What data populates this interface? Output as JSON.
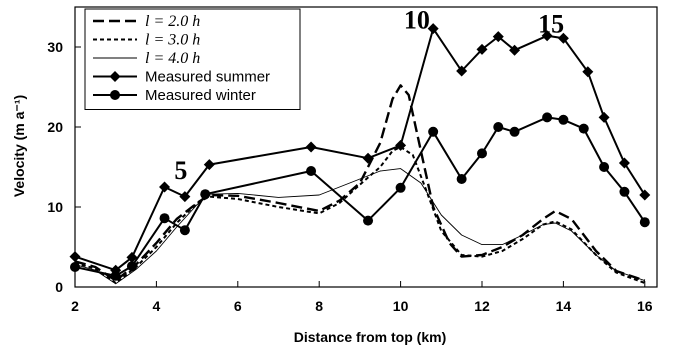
{
  "chart_data": {
    "type": "line",
    "xlabel": "Distance from top (km)",
    "ylabel": "Velocity (m a⁻¹)",
    "xlim": [
      2,
      16.3
    ],
    "ylim": [
      0,
      35
    ],
    "xticks": [
      2,
      4,
      6,
      8,
      10,
      12,
      14,
      16
    ],
    "yticks": [
      0,
      10,
      20,
      30
    ],
    "grid": false,
    "legend_position": "top-left",
    "annotations": [
      {
        "text": "5",
        "x": 4.6,
        "y": 13.5
      },
      {
        "text": "10",
        "x": 10.4,
        "y": 32.3
      },
      {
        "text": "15",
        "x": 13.7,
        "y": 31.8
      }
    ],
    "series": [
      {
        "name": "l = 2.0 h",
        "style": "long-dash",
        "points": [
          [
            2,
            3.2
          ],
          [
            2.5,
            2.5
          ],
          [
            3,
            0.8
          ],
          [
            3.5,
            2.8
          ],
          [
            4,
            5.5
          ],
          [
            4.5,
            8.5
          ],
          [
            5,
            10.5
          ],
          [
            5.3,
            11.5
          ],
          [
            6,
            11.4
          ],
          [
            7,
            10.5
          ],
          [
            8,
            9.5
          ],
          [
            8.5,
            10.8
          ],
          [
            9,
            13
          ],
          [
            9.5,
            18
          ],
          [
            9.8,
            23.5
          ],
          [
            10,
            25.2
          ],
          [
            10.2,
            24
          ],
          [
            10.5,
            17
          ],
          [
            10.8,
            10
          ],
          [
            11.2,
            5.5
          ],
          [
            11.5,
            3.8
          ],
          [
            12,
            4
          ],
          [
            12.5,
            5
          ],
          [
            13,
            6.5
          ],
          [
            13.5,
            8.5
          ],
          [
            13.8,
            9.5
          ],
          [
            14.2,
            8.5
          ],
          [
            14.8,
            4.5
          ],
          [
            15.3,
            2
          ],
          [
            16,
            0.8
          ]
        ]
      },
      {
        "name": "l = 3.0 h",
        "style": "short-dash",
        "points": [
          [
            2,
            3
          ],
          [
            2.5,
            2.3
          ],
          [
            3,
            0.5
          ],
          [
            3.5,
            2.5
          ],
          [
            4,
            5
          ],
          [
            4.5,
            8
          ],
          [
            5,
            10.5
          ],
          [
            5.3,
            11.3
          ],
          [
            6,
            11
          ],
          [
            7,
            10
          ],
          [
            8,
            9.2
          ],
          [
            8.5,
            10.5
          ],
          [
            9,
            12.8
          ],
          [
            9.5,
            15
          ],
          [
            9.8,
            17
          ],
          [
            10,
            17.5
          ],
          [
            10.3,
            16.5
          ],
          [
            10.6,
            12.5
          ],
          [
            11,
            7
          ],
          [
            11.5,
            4
          ],
          [
            12,
            3.8
          ],
          [
            12.5,
            4.5
          ],
          [
            13,
            6
          ],
          [
            13.5,
            7.8
          ],
          [
            13.8,
            8.2
          ],
          [
            14.2,
            7.2
          ],
          [
            14.8,
            4
          ],
          [
            15.3,
            1.8
          ],
          [
            16,
            0.5
          ]
        ]
      },
      {
        "name": "l = 4.0 h",
        "style": "solid-thin",
        "points": [
          [
            2,
            2.8
          ],
          [
            2.5,
            2.1
          ],
          [
            3,
            0.4
          ],
          [
            3.5,
            2.2
          ],
          [
            4,
            4.5
          ],
          [
            4.5,
            7.5
          ],
          [
            5,
            10.3
          ],
          [
            5.3,
            11.6
          ],
          [
            6,
            11.7
          ],
          [
            7,
            11.2
          ],
          [
            8,
            11.5
          ],
          [
            9,
            13.5
          ],
          [
            9.5,
            14.5
          ],
          [
            10,
            14.8
          ],
          [
            10.5,
            13
          ],
          [
            11,
            9
          ],
          [
            11.5,
            6.5
          ],
          [
            12,
            5.3
          ],
          [
            12.5,
            5.3
          ],
          [
            13,
            6.5
          ],
          [
            13.5,
            7.8
          ],
          [
            13.8,
            8
          ],
          [
            14.2,
            7
          ],
          [
            14.8,
            4
          ],
          [
            15.3,
            2
          ],
          [
            16,
            0.8
          ]
        ]
      },
      {
        "name": "Measured summer",
        "style": "solid-diamond",
        "points": [
          [
            2,
            3.8
          ],
          [
            3,
            2.1
          ],
          [
            3.4,
            3.7
          ],
          [
            4.2,
            12.5
          ],
          [
            4.7,
            11.3
          ],
          [
            5.3,
            15.3
          ],
          [
            7.8,
            17.5
          ],
          [
            9.2,
            16.1
          ],
          [
            10,
            17.7
          ],
          [
            10.8,
            32.3
          ],
          [
            11.5,
            27
          ],
          [
            12,
            29.7
          ],
          [
            12.4,
            31.3
          ],
          [
            12.8,
            29.6
          ],
          [
            13.6,
            31.4
          ],
          [
            14,
            31.1
          ],
          [
            14.6,
            26.9
          ],
          [
            15,
            21.2
          ],
          [
            15.5,
            15.5
          ],
          [
            16,
            11.5
          ]
        ]
      },
      {
        "name": "Measured winter",
        "style": "solid-circle",
        "points": [
          [
            2,
            2.5
          ],
          [
            3,
            1.4
          ],
          [
            3.4,
            2.6
          ],
          [
            4.2,
            8.6
          ],
          [
            4.7,
            7.1
          ],
          [
            5.2,
            11.6
          ],
          [
            7.8,
            14.5
          ],
          [
            9.2,
            8.3
          ],
          [
            10,
            12.4
          ],
          [
            10.8,
            19.4
          ],
          [
            11.5,
            13.5
          ],
          [
            12,
            16.7
          ],
          [
            12.4,
            20
          ],
          [
            12.8,
            19.4
          ],
          [
            13.6,
            21.2
          ],
          [
            14,
            20.9
          ],
          [
            14.5,
            19.8
          ],
          [
            15,
            15
          ],
          [
            15.5,
            11.9
          ],
          [
            16,
            8.1
          ]
        ]
      }
    ]
  }
}
